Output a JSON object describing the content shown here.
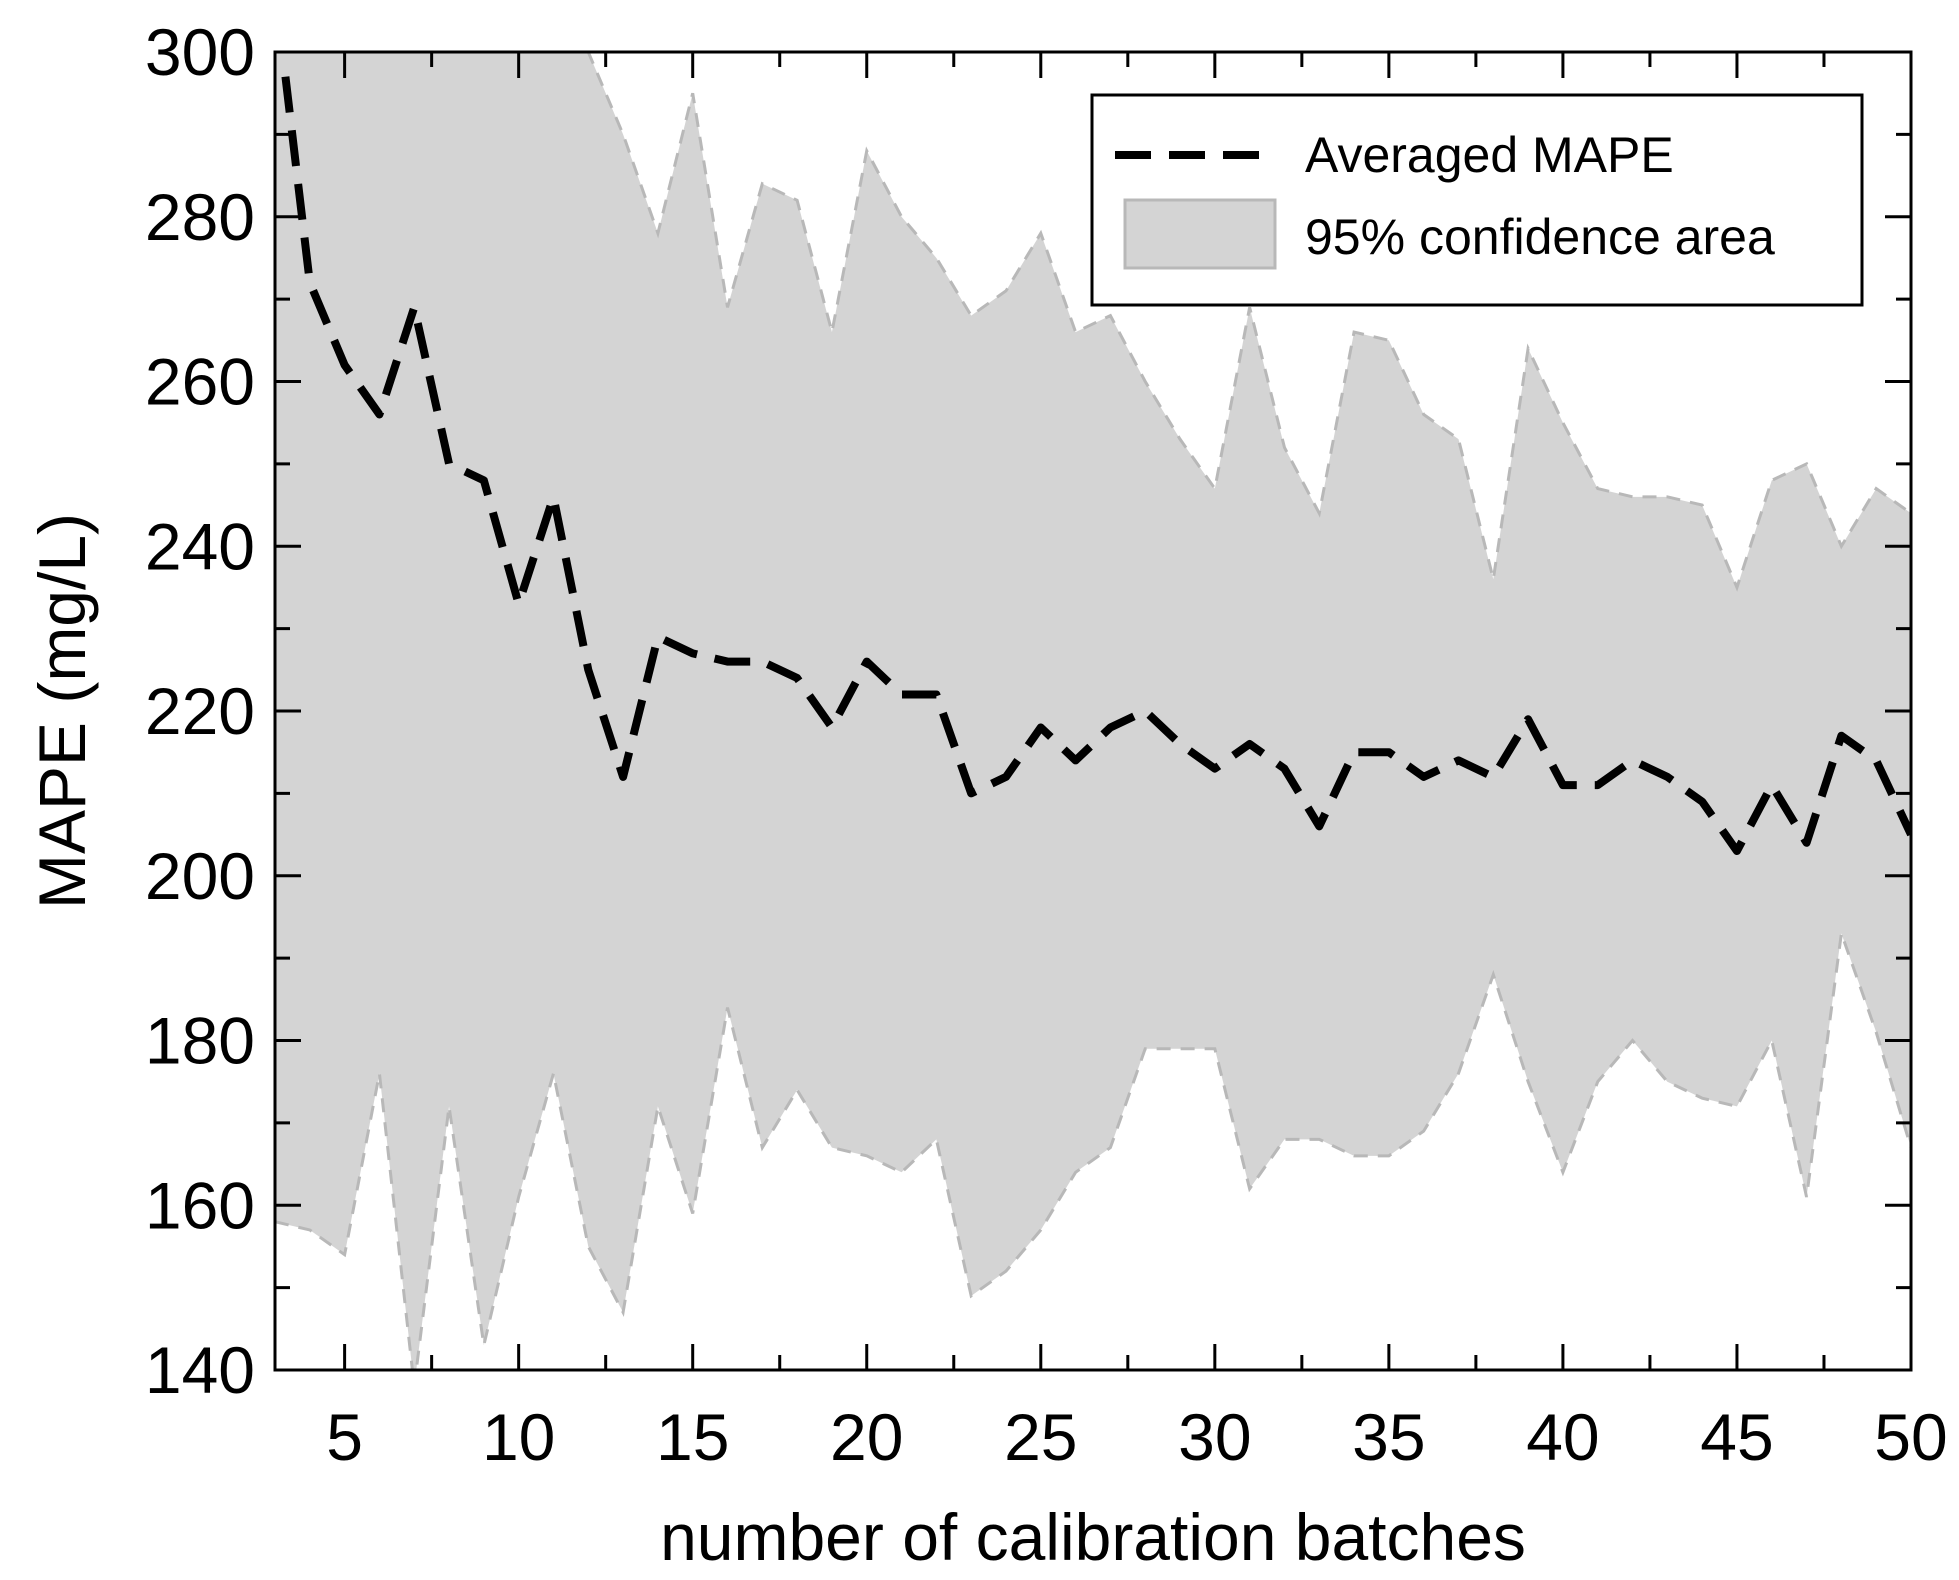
{
  "chart_data": {
    "type": "line",
    "xlabel": "number of calibration batches",
    "ylabel": "MAPE (mg/L)",
    "xlim": [
      3,
      50
    ],
    "ylim": [
      140,
      300
    ],
    "x_ticks": [
      5,
      10,
      15,
      20,
      25,
      30,
      35,
      40,
      45,
      50
    ],
    "y_ticks": [
      140,
      160,
      180,
      200,
      220,
      240,
      260,
      280,
      300
    ],
    "grid": false,
    "legend": {
      "position": "top-right",
      "entries": [
        {
          "label": "Averaged MAPE",
          "style": "dashed-line"
        },
        {
          "label": "95% confidence area",
          "style": "filled-area"
        }
      ]
    },
    "colors": {
      "line": "#000000",
      "area_fill": "#d4d4d4",
      "area_edge": "#b8b8b8"
    },
    "series": [
      {
        "name": "Averaged MAPE",
        "x": [
          3.3,
          4,
          5,
          6,
          7,
          8,
          9,
          10,
          11,
          12,
          13,
          14,
          15,
          16,
          17,
          18,
          19,
          20,
          21,
          22,
          23,
          24,
          25,
          26,
          27,
          28,
          29,
          30,
          31,
          32,
          33,
          34,
          35,
          36,
          37,
          38,
          39,
          40,
          41,
          42,
          43,
          44,
          45,
          46,
          47,
          48,
          49,
          50
        ],
        "y": [
          297,
          272,
          262,
          256,
          269,
          250,
          248,
          233,
          246,
          225,
          212,
          229,
          227,
          226,
          226,
          224,
          218,
          226,
          222,
          222,
          210,
          212,
          218,
          214,
          218,
          220,
          216,
          213,
          216,
          213,
          206,
          215,
          215,
          212,
          214,
          212,
          219,
          211,
          211,
          214,
          212,
          209,
          203,
          211,
          204,
          217,
          214,
          205
        ]
      },
      {
        "name": "95% confidence area (upper)",
        "x": [
          3,
          4,
          5,
          6,
          7,
          8,
          9,
          10,
          11,
          12,
          13,
          14,
          15,
          16,
          17,
          18,
          19,
          20,
          21,
          22,
          23,
          24,
          25,
          26,
          27,
          28,
          29,
          30,
          31,
          32,
          33,
          34,
          35,
          36,
          37,
          38,
          39,
          40,
          41,
          42,
          43,
          44,
          45,
          46,
          47,
          48,
          49,
          50
        ],
        "y": [
          300,
          300,
          300,
          300,
          300,
          300,
          300,
          300,
          300,
          300,
          290,
          278,
          295,
          269,
          284,
          282,
          266,
          288,
          280,
          275,
          268,
          271,
          278,
          266,
          268,
          260,
          253,
          247,
          269,
          252,
          244,
          266,
          265,
          256,
          253,
          236,
          264,
          255,
          247,
          246,
          246,
          245,
          235,
          248,
          250,
          240,
          247,
          244
        ]
      },
      {
        "name": "95% confidence area (lower)",
        "x": [
          3,
          4,
          5,
          6,
          7,
          8,
          9,
          10,
          11,
          12,
          13,
          14,
          15,
          16,
          17,
          18,
          19,
          20,
          21,
          22,
          23,
          24,
          25,
          26,
          27,
          28,
          29,
          30,
          31,
          32,
          33,
          34,
          35,
          36,
          37,
          38,
          39,
          40,
          41,
          42,
          43,
          44,
          45,
          46,
          47,
          48,
          49,
          50
        ],
        "y": [
          158,
          157,
          154,
          176,
          138,
          172,
          143,
          161,
          176,
          155,
          147,
          172,
          159,
          184,
          167,
          174,
          167,
          166,
          164,
          168,
          149,
          152,
          157,
          164,
          167,
          179,
          179,
          179,
          162,
          168,
          168,
          166,
          166,
          169,
          176,
          188,
          175,
          164,
          175,
          180,
          175,
          173,
          172,
          180,
          161,
          193,
          181,
          167
        ]
      }
    ]
  }
}
